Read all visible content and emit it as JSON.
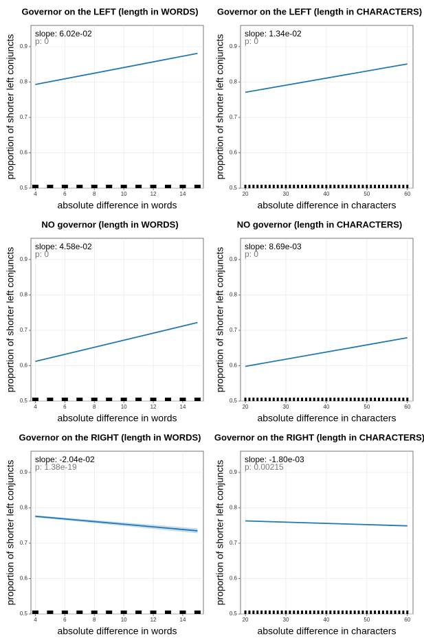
{
  "chart_data": [
    {
      "type": "line",
      "title": "Governor on the LEFT (length in WORDS)",
      "x_label": "absolute difference in words",
      "y_label": "proportion of shorter left conjuncts",
      "annotations": [
        "slope: 6.02e-02",
        "p: 0"
      ],
      "x": [
        4,
        15
      ],
      "values": [
        0.793,
        0.881
      ],
      "color": "#1f78b4",
      "xlim": [
        3.7,
        15.4
      ],
      "ylim": [
        0.5,
        0.96
      ],
      "xticks": [
        4,
        6,
        8,
        10,
        12,
        14
      ],
      "yticks": [
        0.5,
        0.6,
        0.7,
        0.8,
        0.9
      ],
      "grid": true,
      "rug": [
        4,
        5,
        6,
        7,
        8,
        9,
        10,
        11,
        12,
        13,
        14,
        15
      ]
    },
    {
      "type": "line",
      "title": "Governor on the LEFT (length in CHARACTERS)",
      "x_label": "absolute difference in characters",
      "y_label": "proportion of shorter left conjuncts",
      "annotations": [
        "slope: 1.34e-02",
        "p: 0"
      ],
      "x": [
        20,
        60
      ],
      "values": [
        0.771,
        0.851
      ],
      "color": "#1f78b4",
      "xlim": [
        18.8,
        61.4
      ],
      "ylim": [
        0.5,
        0.96
      ],
      "xticks": [
        20,
        30,
        40,
        50,
        60
      ],
      "yticks": [
        0.5,
        0.6,
        0.7,
        0.8,
        0.9
      ],
      "grid": true,
      "rug": [
        20,
        21,
        22,
        23,
        24,
        25,
        26,
        27,
        28,
        29,
        30,
        31,
        32,
        33,
        34,
        35,
        36,
        37,
        38,
        39,
        40,
        41,
        42,
        43,
        44,
        45,
        46,
        47,
        48,
        49,
        50,
        51,
        52,
        53,
        54,
        55,
        56,
        57,
        58,
        59,
        60
      ]
    },
    {
      "type": "line",
      "title": "NO governor (length in WORDS)",
      "x_label": "absolute difference in words",
      "y_label": "proportion of shorter left conjuncts",
      "annotations": [
        "slope: 4.58e-02",
        "p: 0"
      ],
      "x": [
        4,
        15
      ],
      "values": [
        0.612,
        0.722
      ],
      "color": "#1f78b4",
      "xlim": [
        3.7,
        15.4
      ],
      "ylim": [
        0.5,
        0.96
      ],
      "xticks": [
        4,
        6,
        8,
        10,
        12,
        14
      ],
      "yticks": [
        0.5,
        0.6,
        0.7,
        0.8,
        0.9
      ],
      "grid": true,
      "rug": [
        4,
        5,
        6,
        7,
        8,
        9,
        10,
        11,
        12,
        13,
        14,
        15
      ]
    },
    {
      "type": "line",
      "title": "NO governor (length in CHARACTERS)",
      "x_label": "absolute difference in characters",
      "y_label": "proportion of shorter left conjuncts",
      "annotations": [
        "slope: 8.69e-03",
        "p: 0"
      ],
      "x": [
        20,
        60
      ],
      "values": [
        0.598,
        0.679
      ],
      "color": "#1f78b4",
      "xlim": [
        18.8,
        61.4
      ],
      "ylim": [
        0.5,
        0.96
      ],
      "xticks": [
        20,
        30,
        40,
        50,
        60
      ],
      "yticks": [
        0.5,
        0.6,
        0.7,
        0.8,
        0.9
      ],
      "grid": true,
      "rug": [
        20,
        21,
        22,
        23,
        24,
        25,
        26,
        27,
        28,
        29,
        30,
        31,
        32,
        33,
        34,
        35,
        36,
        37,
        38,
        39,
        40,
        41,
        42,
        43,
        44,
        45,
        46,
        47,
        48,
        49,
        50,
        51,
        52,
        53,
        54,
        55,
        56,
        57,
        58,
        59,
        60
      ]
    },
    {
      "type": "line",
      "title": "Governor on the RIGHT (length in WORDS)",
      "x_label": "absolute difference in words",
      "y_label": "proportion of shorter left conjuncts",
      "annotations": [
        "slope: -2.04e-02",
        "p: 1.38e-19"
      ],
      "x": [
        4,
        15
      ],
      "values": [
        0.776,
        0.735
      ],
      "lower": [
        0.773,
        0.728
      ],
      "upper": [
        0.779,
        0.742
      ],
      "color": "#1f78b4",
      "xlim": [
        3.7,
        15.4
      ],
      "ylim": [
        0.5,
        0.96
      ],
      "xticks": [
        4,
        6,
        8,
        10,
        12,
        14
      ],
      "yticks": [
        0.5,
        0.6,
        0.7,
        0.8,
        0.9
      ],
      "grid": true,
      "rug": [
        4,
        5,
        6,
        7,
        8,
        9,
        10,
        11,
        12,
        13,
        14,
        15
      ]
    },
    {
      "type": "line",
      "title": "Governor on the RIGHT (length in CHARACTERS)",
      "x_label": "absolute difference in characters",
      "y_label": "proportion of shorter left conjuncts",
      "annotations": [
        "slope: -1.80e-03",
        "p: 0.00215"
      ],
      "x": [
        20,
        60
      ],
      "values": [
        0.763,
        0.749
      ],
      "color": "#1f78b4",
      "xlim": [
        18.8,
        61.4
      ],
      "ylim": [
        0.5,
        0.96
      ],
      "xticks": [
        20,
        30,
        40,
        50,
        60
      ],
      "yticks": [
        0.5,
        0.6,
        0.7,
        0.8,
        0.9
      ],
      "grid": true,
      "rug": [
        20,
        21,
        22,
        23,
        24,
        25,
        26,
        27,
        28,
        29,
        30,
        31,
        32,
        33,
        34,
        35,
        36,
        37,
        38,
        39,
        40,
        41,
        42,
        43,
        44,
        45,
        46,
        47,
        48,
        49,
        50,
        51,
        52,
        53,
        54,
        55,
        56,
        57,
        58,
        59,
        60
      ]
    }
  ]
}
